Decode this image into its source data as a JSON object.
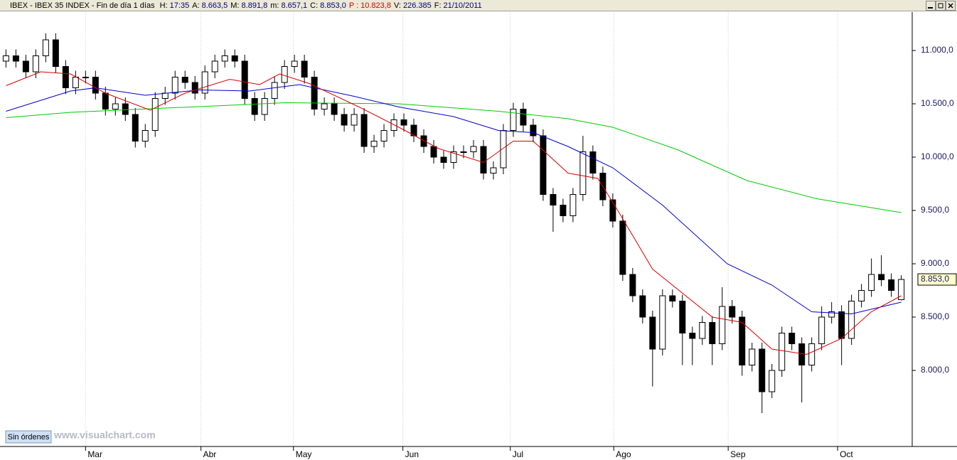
{
  "header": {
    "title": "IBEX - IBEX 35 INDEX - Fin de día 1 días",
    "fields": [
      {
        "label": "H:",
        "value": "17:35",
        "color": "#000080"
      },
      {
        "label": "A:",
        "value": "8.663,5",
        "color": "#000080"
      },
      {
        "label": "M:",
        "value": "8.891,8",
        "color": "#000080"
      },
      {
        "label": "m:",
        "value": "8.657,1",
        "color": "#000080"
      },
      {
        "label": "C:",
        "value": "8.853,0",
        "color": "#000080"
      },
      {
        "label": "P :",
        "value": "10.823,8",
        "color": "#e00000"
      },
      {
        "label": "V:",
        "value": "226.385",
        "color": "#000080"
      },
      {
        "label": "F:",
        "value": "21/10/2011",
        "color": "#000080"
      }
    ]
  },
  "footer": {
    "button": "Sin órdenes",
    "watermark": "www.visualchart.com"
  },
  "chart_data": {
    "type": "candlestick",
    "xlim": [
      -0.6,
      91.1
    ],
    "ylim": [
      7290,
      11350
    ],
    "xticks": [
      {
        "value": 8,
        "label": "Mar"
      },
      {
        "value": 19.6,
        "label": "Abr"
      },
      {
        "value": 28.9,
        "label": "May"
      },
      {
        "value": 39.9,
        "label": "Jun"
      },
      {
        "value": 50.7,
        "label": "Jul"
      },
      {
        "value": 61.1,
        "label": "Ago"
      },
      {
        "value": 72.6,
        "label": "Sep"
      },
      {
        "value": 83.6,
        "label": "Oct"
      }
    ],
    "yticks": [
      {
        "value": 8000,
        "label": "8.000,0"
      },
      {
        "value": 8500,
        "label": "8.500,0"
      },
      {
        "value": 9000,
        "label": "9.000,0"
      },
      {
        "value": 9500,
        "label": "9.500,0"
      },
      {
        "value": 10000,
        "label": "10.000,0"
      },
      {
        "value": 10500,
        "label": "10.500,0"
      },
      {
        "value": 11000,
        "label": "11.000,0"
      }
    ],
    "grid": true,
    "candles": {
      "up_color": "#ffffff",
      "down_color": "#000000",
      "x": [
        0,
        1,
        2,
        3,
        4,
        5,
        6,
        7,
        8,
        9,
        10,
        11,
        12,
        13,
        14,
        15,
        16,
        17,
        18,
        19,
        20,
        21,
        22,
        23,
        24,
        25,
        26,
        27,
        28,
        29,
        30,
        31,
        32,
        33,
        34,
        35,
        36,
        37,
        38,
        39,
        40,
        41,
        42,
        43,
        44,
        45,
        46,
        47,
        48,
        49,
        50,
        51,
        52,
        53,
        54,
        55,
        56,
        57,
        58,
        59,
        60,
        61,
        62,
        63,
        64,
        65,
        66,
        67,
        68,
        69,
        70,
        71,
        72,
        73,
        74,
        75,
        76,
        77,
        78,
        79,
        80,
        81,
        82,
        83,
        84,
        85,
        86,
        87,
        88,
        89,
        90
      ],
      "open": [
        10900,
        10950,
        10900,
        10800,
        10950,
        11100,
        10850,
        10650,
        10750,
        10750,
        10600,
        10450,
        10500,
        10400,
        10150,
        10250,
        10550,
        10600,
        10750,
        10700,
        10600,
        10800,
        10900,
        10950,
        10900,
        10550,
        10400,
        10550,
        10700,
        10850,
        10900,
        10750,
        10450,
        10500,
        10400,
        10300,
        10400,
        10100,
        10150,
        10250,
        10350,
        10300,
        10200,
        10100,
        10000,
        9950,
        10050,
        10050,
        10100,
        9850,
        9900,
        10250,
        10450,
        10300,
        10200,
        9650,
        9550,
        9450,
        9650,
        10050,
        9850,
        9600,
        9400,
        8900,
        8700,
        8500,
        8200,
        8700,
        8650,
        8350,
        8300,
        8450,
        8250,
        8600,
        8500,
        8050,
        8200,
        7800,
        8000,
        8350,
        8250,
        8050,
        8250,
        8500,
        8550,
        8300,
        8650,
        8750,
        8900,
        8850,
        8663.5
      ],
      "high": [
        11010,
        11010,
        10960,
        11010,
        11160,
        11160,
        10910,
        10810,
        10810,
        10810,
        10660,
        10560,
        10560,
        10460,
        10310,
        10610,
        10660,
        10810,
        10810,
        10760,
        10860,
        10960,
        11010,
        11010,
        10960,
        10610,
        10610,
        10760,
        10910,
        10960,
        10960,
        10810,
        10560,
        10560,
        10460,
        10460,
        10460,
        10210,
        10310,
        10410,
        10410,
        10360,
        10260,
        10160,
        10060,
        10110,
        10110,
        10160,
        10160,
        9960,
        10310,
        10510,
        10510,
        10360,
        10260,
        9710,
        9610,
        9710,
        10200,
        10110,
        9910,
        9660,
        9460,
        8960,
        8760,
        8560,
        8760,
        8760,
        8710,
        8410,
        8510,
        8510,
        8780,
        8660,
        8560,
        8260,
        8260,
        8060,
        8410,
        8410,
        8310,
        8310,
        8600,
        8640,
        8610,
        8710,
        8810,
        9050,
        9080,
        8910,
        8891.8
      ],
      "low": [
        10840,
        10840,
        10740,
        10740,
        10890,
        10790,
        10590,
        10590,
        10690,
        10540,
        10390,
        10390,
        10340,
        10090,
        10090,
        10190,
        10490,
        10540,
        10640,
        10540,
        10540,
        10740,
        10840,
        10840,
        10490,
        10340,
        10340,
        10490,
        10640,
        10790,
        10690,
        10390,
        10390,
        10340,
        10240,
        10240,
        10040,
        10040,
        10090,
        10190,
        10240,
        10140,
        10040,
        9940,
        9890,
        9890,
        9990,
        9990,
        9790,
        9790,
        9840,
        10190,
        10240,
        10140,
        9590,
        9300,
        9390,
        9390,
        9590,
        9790,
        9540,
        9340,
        8840,
        8640,
        8440,
        7850,
        8140,
        8590,
        8050,
        8050,
        8240,
        8050,
        8190,
        8440,
        7950,
        7990,
        7600,
        7740,
        7940,
        8190,
        7700,
        7990,
        8190,
        8440,
        8050,
        8240,
        8590,
        8690,
        8790,
        8690,
        8657.1
      ],
      "close": [
        10950,
        10900,
        10800,
        10950,
        11100,
        10850,
        10650,
        10750,
        10750,
        10600,
        10450,
        10500,
        10400,
        10150,
        10250,
        10550,
        10600,
        10750,
        10700,
        10600,
        10800,
        10900,
        10950,
        10900,
        10550,
        10400,
        10550,
        10700,
        10850,
        10900,
        10750,
        10450,
        10500,
        10400,
        10300,
        10400,
        10100,
        10150,
        10250,
        10350,
        10300,
        10200,
        10100,
        10000,
        9950,
        10050,
        10050,
        10100,
        9850,
        9900,
        10250,
        10450,
        10300,
        10200,
        9650,
        9550,
        9450,
        9650,
        10050,
        9850,
        9600,
        9400,
        8900,
        8700,
        8500,
        8200,
        8700,
        8650,
        8350,
        8300,
        8450,
        8250,
        8600,
        8500,
        8050,
        8200,
        7800,
        8000,
        8350,
        8250,
        8050,
        8250,
        8500,
        8550,
        8300,
        8650,
        8750,
        8900,
        8850,
        8750,
        8853
      ]
    },
    "last_label": {
      "value": 8853,
      "label": "8.853,0"
    },
    "series": [
      {
        "color": "#00cc00",
        "x": [
          0,
          6.5,
          13.5,
          21,
          28,
          39.5,
          49.5,
          56.5,
          61,
          67.5,
          74.5,
          81.5,
          90
        ],
        "values": [
          10370,
          10420,
          10450,
          10480,
          10510,
          10500,
          10430,
          10360,
          10280,
          10070,
          9780,
          9610,
          9480
        ]
      },
      {
        "color": "#0000cc",
        "x": [
          0,
          6.5,
          9,
          14,
          19.5,
          24.5,
          29.5,
          35,
          39.5,
          45,
          49.5,
          53,
          56.5,
          61,
          66,
          72.5,
          77,
          81,
          85,
          90
        ],
        "values": [
          10430,
          10620,
          10650,
          10580,
          10630,
          10620,
          10680,
          10570,
          10470,
          10380,
          10250,
          10230,
          10100,
          9900,
          9550,
          9000,
          8800,
          8550,
          8530,
          8640
        ]
      },
      {
        "color": "#dd0000",
        "x": [
          0,
          3.5,
          6.5,
          10,
          14.5,
          18,
          22.5,
          25.5,
          27.5,
          30.5,
          35.5,
          39.5,
          43.5,
          48,
          51,
          53,
          56.5,
          59.5,
          61.5,
          65,
          71,
          74,
          77,
          80.5,
          84,
          87,
          90
        ],
        "values": [
          10670,
          10800,
          10780,
          10600,
          10440,
          10600,
          10730,
          10680,
          10780,
          10690,
          10470,
          10280,
          10080,
          9950,
          10150,
          10150,
          9850,
          9800,
          9500,
          8950,
          8500,
          8450,
          8200,
          8150,
          8300,
          8550,
          8700
        ]
      }
    ]
  }
}
